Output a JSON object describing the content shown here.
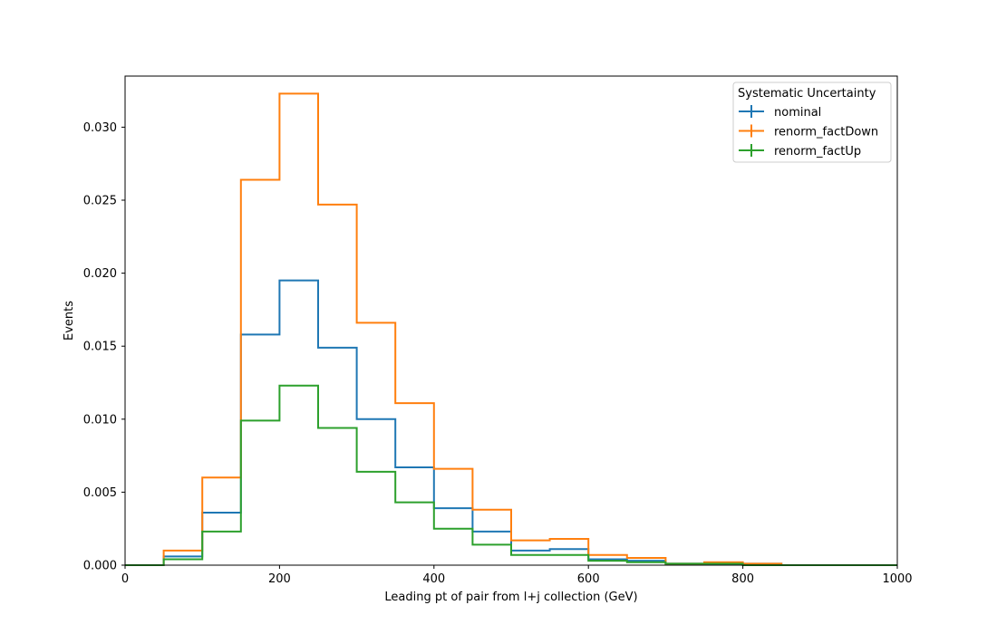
{
  "chart_data": {
    "type": "step-histogram",
    "xlabel": "Leading pt of pair from l+j collection (GeV)",
    "ylabel": "Events",
    "xlim": [
      0,
      1000
    ],
    "ylim": [
      0,
      0.0335
    ],
    "x_ticks": [
      0,
      200,
      400,
      600,
      800,
      1000
    ],
    "y_ticks": [
      0.0,
      0.005,
      0.01,
      0.015,
      0.02,
      0.025,
      0.03
    ],
    "y_tick_labels": [
      "0.000",
      "0.005",
      "0.010",
      "0.015",
      "0.020",
      "0.025",
      "0.030"
    ],
    "grid": false,
    "legend": {
      "title": "Systematic Uncertainty",
      "placement": "top-right"
    },
    "bin_edges": [
      0,
      50,
      100,
      150,
      200,
      250,
      300,
      350,
      400,
      450,
      500,
      550,
      600,
      650,
      700,
      750,
      800,
      850,
      900,
      950,
      1000
    ],
    "series": [
      {
        "name": "nominal",
        "color": "#1f77b4",
        "values": [
          0.0,
          0.0006,
          0.0036,
          0.0158,
          0.0195,
          0.0149,
          0.01,
          0.0067,
          0.0039,
          0.0023,
          0.001,
          0.0011,
          0.0004,
          0.0003,
          0.0001,
          0.0001,
          0.0001,
          0.0,
          0.0,
          0.0
        ]
      },
      {
        "name": "renorm_factDown",
        "color": "#ff7f0e",
        "values": [
          0.0,
          0.001,
          0.006,
          0.0264,
          0.0323,
          0.0247,
          0.0166,
          0.0111,
          0.0066,
          0.0038,
          0.0017,
          0.0018,
          0.0007,
          0.0005,
          0.0001,
          0.0002,
          0.0001,
          0.0,
          0.0,
          0.0
        ]
      },
      {
        "name": "renorm_factUp",
        "color": "#2ca02c",
        "values": [
          0.0,
          0.0004,
          0.0023,
          0.0099,
          0.0123,
          0.0094,
          0.0064,
          0.0043,
          0.0025,
          0.0014,
          0.0007,
          0.0007,
          0.0003,
          0.0002,
          0.0001,
          0.0001,
          0.0,
          0.0,
          0.0,
          0.0
        ]
      }
    ]
  }
}
